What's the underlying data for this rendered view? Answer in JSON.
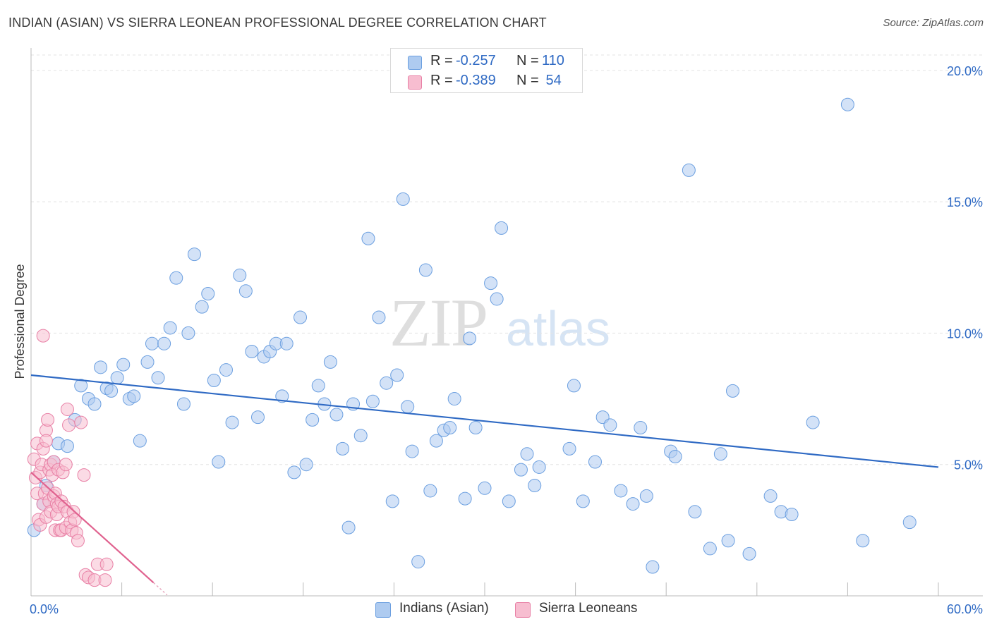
{
  "header": {
    "title": "INDIAN (ASIAN) VS SIERRA LEONEAN PROFESSIONAL DEGREE CORRELATION CHART",
    "source": "Source: ZipAtlas.com"
  },
  "watermark": {
    "zip": "ZIP",
    "atlas": "atlas"
  },
  "legend": {
    "rows": [
      {
        "r_label": "R =",
        "r_value": "-0.257",
        "n_label": "N =",
        "n_value": "110",
        "color": "#aecbf0",
        "border": "#6b9fe0"
      },
      {
        "r_label": "R =",
        "r_value": "-0.389",
        "n_label": "N =",
        "n_value": " 54",
        "color": "#f7bdd0",
        "border": "#e87fa5"
      }
    ]
  },
  "bottom_legend": [
    {
      "label": "Indians (Asian)",
      "color": "#aecbf0",
      "border": "#6b9fe0"
    },
    {
      "label": "Sierra Leoneans",
      "color": "#f7bdd0",
      "border": "#e87fa5"
    }
  ],
  "chart_data": {
    "type": "scatter",
    "title": "INDIAN (ASIAN) VS SIERRA LEONEAN PROFESSIONAL DEGREE CORRELATION CHART",
    "xlabel": "",
    "ylabel": "Professional Degree",
    "xlim": [
      0,
      60
    ],
    "ylim": [
      0,
      20.8
    ],
    "x_tick_labels": [
      "0.0%",
      "60.0%"
    ],
    "y_ticks": [
      5,
      10,
      15,
      20
    ],
    "y_tick_labels": [
      "5.0%",
      "10.0%",
      "15.0%",
      "20.0%"
    ],
    "grid": true,
    "legend_position": "top-center",
    "series": [
      {
        "name": "Indians (Asian)",
        "color": "#aecbf0",
        "edge": "#6b9fe0",
        "line_color": "#2f6ac4",
        "trend": [
          [
            0,
            8.4
          ],
          [
            60,
            4.9
          ]
        ],
        "points": [
          [
            0.2,
            2.5
          ],
          [
            0.8,
            3.5
          ],
          [
            1.0,
            4.2
          ],
          [
            1.5,
            5.1
          ],
          [
            1.8,
            5.8
          ],
          [
            2.4,
            5.7
          ],
          [
            2.9,
            6.7
          ],
          [
            3.3,
            8.0
          ],
          [
            3.8,
            7.5
          ],
          [
            4.2,
            7.3
          ],
          [
            4.6,
            8.7
          ],
          [
            5.0,
            7.9
          ],
          [
            5.3,
            7.8
          ],
          [
            5.7,
            8.3
          ],
          [
            6.1,
            8.8
          ],
          [
            6.5,
            7.5
          ],
          [
            6.8,
            7.6
          ],
          [
            7.2,
            5.9
          ],
          [
            7.7,
            8.9
          ],
          [
            8.0,
            9.6
          ],
          [
            8.4,
            8.3
          ],
          [
            8.8,
            9.6
          ],
          [
            9.2,
            10.2
          ],
          [
            9.6,
            12.1
          ],
          [
            10.1,
            7.3
          ],
          [
            10.4,
            10.0
          ],
          [
            10.8,
            13.0
          ],
          [
            11.3,
            11.0
          ],
          [
            11.7,
            11.5
          ],
          [
            12.1,
            8.2
          ],
          [
            12.4,
            5.1
          ],
          [
            12.9,
            8.6
          ],
          [
            13.3,
            6.6
          ],
          [
            13.8,
            12.2
          ],
          [
            14.2,
            11.6
          ],
          [
            14.6,
            9.3
          ],
          [
            15.0,
            6.8
          ],
          [
            15.4,
            9.1
          ],
          [
            15.8,
            9.3
          ],
          [
            16.2,
            9.6
          ],
          [
            16.6,
            7.6
          ],
          [
            16.9,
            9.6
          ],
          [
            17.4,
            4.7
          ],
          [
            17.8,
            10.6
          ],
          [
            18.2,
            5.0
          ],
          [
            18.6,
            6.7
          ],
          [
            19.0,
            8.0
          ],
          [
            19.4,
            7.3
          ],
          [
            19.8,
            8.9
          ],
          [
            20.2,
            6.9
          ],
          [
            20.6,
            5.6
          ],
          [
            21.0,
            2.6
          ],
          [
            21.3,
            7.3
          ],
          [
            21.8,
            6.1
          ],
          [
            22.3,
            13.6
          ],
          [
            22.6,
            7.4
          ],
          [
            23.0,
            10.6
          ],
          [
            23.5,
            8.1
          ],
          [
            23.9,
            3.6
          ],
          [
            24.2,
            8.4
          ],
          [
            24.6,
            15.1
          ],
          [
            24.9,
            7.2
          ],
          [
            25.2,
            5.5
          ],
          [
            25.6,
            1.3
          ],
          [
            26.1,
            12.4
          ],
          [
            26.4,
            4.0
          ],
          [
            26.8,
            5.9
          ],
          [
            27.3,
            6.3
          ],
          [
            27.7,
            6.4
          ],
          [
            28.0,
            7.5
          ],
          [
            28.7,
            3.7
          ],
          [
            29.0,
            9.8
          ],
          [
            29.4,
            6.4
          ],
          [
            30.0,
            4.1
          ],
          [
            30.4,
            11.9
          ],
          [
            30.8,
            11.3
          ],
          [
            31.1,
            14.0
          ],
          [
            31.6,
            3.6
          ],
          [
            32.4,
            4.8
          ],
          [
            32.8,
            5.4
          ],
          [
            33.3,
            4.2
          ],
          [
            33.6,
            4.9
          ],
          [
            35.6,
            5.6
          ],
          [
            35.9,
            8.0
          ],
          [
            36.5,
            3.6
          ],
          [
            37.3,
            5.1
          ],
          [
            37.8,
            6.8
          ],
          [
            38.3,
            6.5
          ],
          [
            39.0,
            4.0
          ],
          [
            39.8,
            3.5
          ],
          [
            40.3,
            6.4
          ],
          [
            40.7,
            3.8
          ],
          [
            41.1,
            1.1
          ],
          [
            42.3,
            5.5
          ],
          [
            42.6,
            5.3
          ],
          [
            43.5,
            16.2
          ],
          [
            43.9,
            3.2
          ],
          [
            44.9,
            1.8
          ],
          [
            45.6,
            5.4
          ],
          [
            46.1,
            2.1
          ],
          [
            46.4,
            7.8
          ],
          [
            47.5,
            1.6
          ],
          [
            48.9,
            3.8
          ],
          [
            49.6,
            3.2
          ],
          [
            50.3,
            3.1
          ],
          [
            51.7,
            6.6
          ],
          [
            54.0,
            18.7
          ],
          [
            55.0,
            2.1
          ],
          [
            58.1,
            2.8
          ]
        ]
      },
      {
        "name": "Sierra Leoneans",
        "color": "#f7bdd0",
        "edge": "#e87fa5",
        "line_color": "#e0628f",
        "trend": [
          [
            0,
            4.7
          ],
          [
            8.1,
            0.5
          ]
        ],
        "points": [
          [
            0.2,
            5.2
          ],
          [
            0.3,
            4.5
          ],
          [
            0.4,
            3.9
          ],
          [
            0.4,
            5.8
          ],
          [
            0.5,
            2.9
          ],
          [
            0.6,
            4.7
          ],
          [
            0.6,
            2.7
          ],
          [
            0.7,
            5.0
          ],
          [
            0.8,
            3.5
          ],
          [
            0.8,
            9.9
          ],
          [
            0.8,
            5.6
          ],
          [
            0.9,
            3.9
          ],
          [
            1.0,
            3.0
          ],
          [
            1.0,
            6.3
          ],
          [
            1.0,
            5.9
          ],
          [
            1.1,
            4.1
          ],
          [
            1.1,
            6.7
          ],
          [
            1.2,
            4.8
          ],
          [
            1.2,
            3.6
          ],
          [
            1.3,
            5.0
          ],
          [
            1.3,
            3.2
          ],
          [
            1.4,
            4.6
          ],
          [
            1.5,
            3.8
          ],
          [
            1.5,
            5.1
          ],
          [
            1.6,
            3.9
          ],
          [
            1.6,
            2.5
          ],
          [
            1.7,
            3.5
          ],
          [
            1.7,
            3.1
          ],
          [
            1.8,
            4.8
          ],
          [
            1.8,
            3.4
          ],
          [
            1.9,
            2.5
          ],
          [
            2.0,
            3.6
          ],
          [
            2.0,
            2.5
          ],
          [
            2.1,
            4.7
          ],
          [
            2.2,
            3.4
          ],
          [
            2.3,
            2.6
          ],
          [
            2.3,
            5.0
          ],
          [
            2.4,
            7.1
          ],
          [
            2.4,
            3.2
          ],
          [
            2.5,
            6.5
          ],
          [
            2.6,
            2.8
          ],
          [
            2.7,
            2.5
          ],
          [
            2.8,
            3.2
          ],
          [
            2.9,
            2.9
          ],
          [
            3.0,
            2.4
          ],
          [
            3.1,
            2.1
          ],
          [
            3.3,
            6.6
          ],
          [
            3.5,
            4.6
          ],
          [
            3.6,
            0.8
          ],
          [
            3.8,
            0.7
          ],
          [
            4.2,
            0.6
          ],
          [
            4.4,
            1.2
          ],
          [
            4.9,
            0.6
          ],
          [
            5.0,
            1.2
          ]
        ]
      }
    ]
  },
  "axis_labels": {
    "y_title": "Professional Degree",
    "x_min_label": "0.0%",
    "x_max_label": "60.0%"
  }
}
